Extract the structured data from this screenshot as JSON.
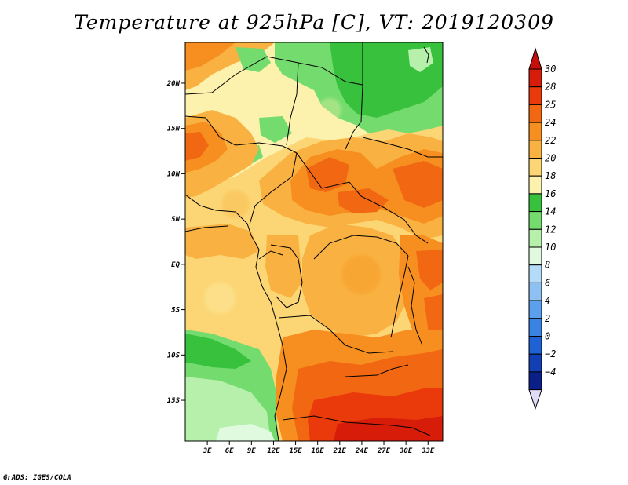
{
  "title": "Temperature at 925hPa [C], VT: 2019120309",
  "credit": "GrADS: IGES/COLA",
  "map": {
    "lat_range": [
      -19.5,
      24.5
    ],
    "lon_range": [
      0,
      35
    ],
    "lat_ticks": [
      {
        "value": 20,
        "label": "20N"
      },
      {
        "value": 15,
        "label": "15N"
      },
      {
        "value": 10,
        "label": "10N"
      },
      {
        "value": 5,
        "label": "5N"
      },
      {
        "value": 0,
        "label": "EQ"
      },
      {
        "value": -5,
        "label": "5S"
      },
      {
        "value": -10,
        "label": "10S"
      },
      {
        "value": -15,
        "label": "15S"
      }
    ],
    "lon_ticks": [
      {
        "value": 3,
        "label": "3E"
      },
      {
        "value": 6,
        "label": "6E"
      },
      {
        "value": 9,
        "label": "9E"
      },
      {
        "value": 12,
        "label": "12E"
      },
      {
        "value": 15,
        "label": "15E"
      },
      {
        "value": 18,
        "label": "18E"
      },
      {
        "value": 21,
        "label": "21E"
      },
      {
        "value": 24,
        "label": "24E"
      },
      {
        "value": 27,
        "label": "27E"
      },
      {
        "value": 30,
        "label": "30E"
      },
      {
        "value": 33,
        "label": "33E"
      }
    ]
  },
  "colorbar": {
    "levels": [
      {
        "label": "30",
        "color": "#d81c0a"
      },
      {
        "label": "28",
        "color": "#ea3a0c"
      },
      {
        "label": "25",
        "color": "#f26712"
      },
      {
        "label": "24",
        "color": "#f68f1f"
      },
      {
        "label": "22",
        "color": "#f9b241"
      },
      {
        "label": "20",
        "color": "#fcd675"
      },
      {
        "label": "18",
        "color": "#fdf2ad"
      },
      {
        "label": "16",
        "color": "#37c13c"
      },
      {
        "label": "14",
        "color": "#74dc6e"
      },
      {
        "label": "12",
        "color": "#b6f0ab"
      },
      {
        "label": "10",
        "color": "#e0fae0"
      },
      {
        "label": "8",
        "color": "#b4dcf8"
      },
      {
        "label": "6",
        "color": "#8ec0f4"
      },
      {
        "label": "4",
        "color": "#5aa0ec"
      },
      {
        "label": "2",
        "color": "#3a82e4"
      },
      {
        "label": "0",
        "color": "#1e62d6"
      },
      {
        "label": "−2",
        "color": "#1240b4"
      },
      {
        "label": "−4",
        "color": "#0a2088"
      }
    ],
    "top_arrow_color": "#c80e08",
    "bottom_arrow_color": "#e0dcf8"
  }
}
